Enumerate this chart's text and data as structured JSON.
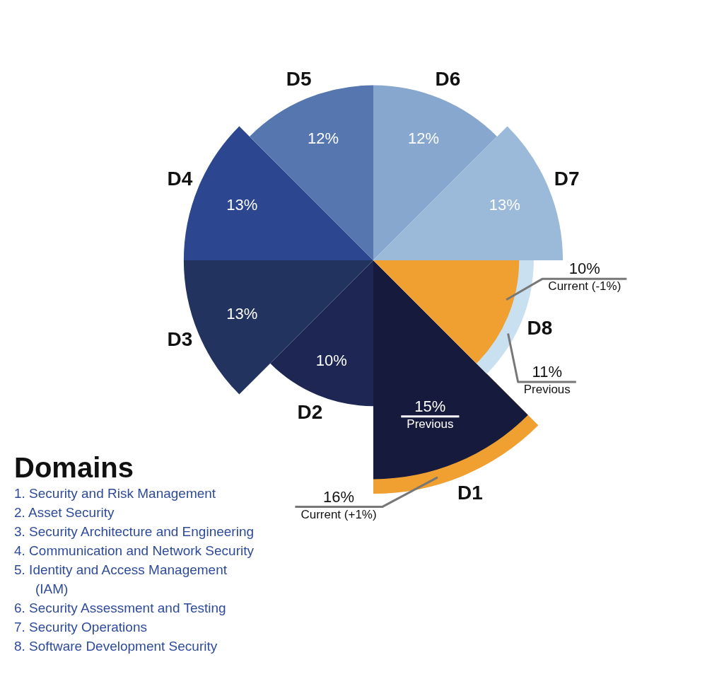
{
  "chart_data": {
    "type": "other",
    "legend_title": "Domains",
    "categories": [
      "D1",
      "D2",
      "D3",
      "D4",
      "D5",
      "D6",
      "D7",
      "D8"
    ],
    "series": [
      {
        "values": [
          16,
          10,
          13,
          13,
          12,
          12,
          13,
          10
        ],
        "colors": [
          "#f0a030",
          "#1e2754",
          "#22335f",
          "#2c4690",
          "#5676b0",
          "#87a7cf",
          "#9bb9d9",
          "#f0a030"
        ],
        "value_labels": [
          "16%",
          "10%",
          "13%",
          "13%",
          "12%",
          "12%",
          "13%",
          "10%"
        ]
      },
      {
        "values": [
          15,
          null,
          null,
          null,
          null,
          null,
          null,
          11
        ],
        "colors": [
          "#161b3d",
          null,
          null,
          null,
          null,
          null,
          null,
          "#c9e0f0"
        ],
        "value_labels": [
          "15%",
          null,
          null,
          null,
          null,
          null,
          null,
          "11%"
        ]
      }
    ],
    "annotations": [
      {
        "text": "Current (+1%)",
        "x": "D1"
      },
      {
        "text": "Previous",
        "x": "D1"
      },
      {
        "text": "Current (-1%)",
        "x": "D8"
      },
      {
        "text": "Previous",
        "x": "D8"
      },
      "1. Security and Risk Management",
      "2. Asset Security",
      "3. Security Architecture and Engineering",
      "4. Communication and Network Security",
      "5. Identity and Access Management (IAM)",
      "6. Security Assessment and Testing",
      "7. Security Operations",
      "8. Software Development Security"
    ]
  }
}
